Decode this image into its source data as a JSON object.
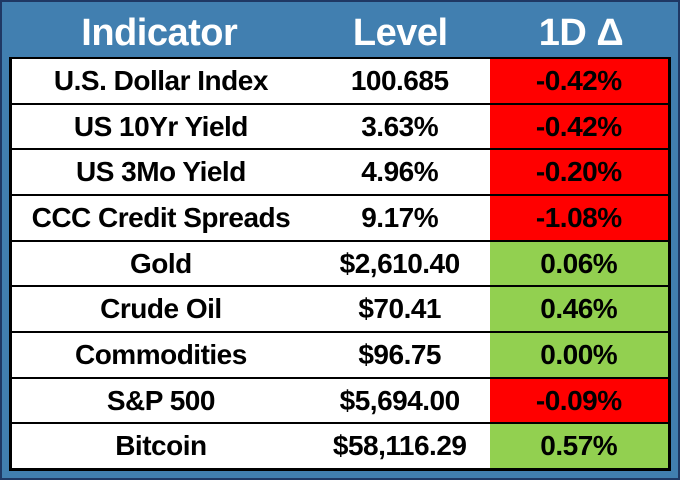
{
  "chart_data": {
    "type": "table",
    "columns": [
      "Indicator",
      "Level",
      "1D Δ"
    ],
    "rows": [
      [
        "U.S. Dollar Index",
        "100.685",
        "-0.42%"
      ],
      [
        "US 10Yr Yield",
        "3.63%",
        "-0.42%"
      ],
      [
        "US 3Mo Yield",
        "4.96%",
        "-0.20%"
      ],
      [
        "CCC Credit Spreads",
        "9.17%",
        "-1.08%"
      ],
      [
        "Gold",
        "$2,610.40",
        "0.06%"
      ],
      [
        "Crude Oil",
        "$70.41",
        "0.46%"
      ],
      [
        "Commodities",
        "$96.75",
        "0.00%"
      ],
      [
        "S&P 500",
        "$5,694.00",
        "-0.09%"
      ],
      [
        "Bitcoin",
        "$58,116.29",
        "0.57%"
      ]
    ],
    "layout": {
      "header_position": "top",
      "grid": "on",
      "delta_color_coding": "red for negative, green for zero or positive"
    }
  },
  "table": {
    "headers": [
      "Indicator",
      "Level",
      "1D Δ"
    ],
    "rows": [
      {
        "indicator": "U.S. Dollar Index",
        "level": "100.685",
        "delta": "-0.42%",
        "direction": "down"
      },
      {
        "indicator": "US 10Yr Yield",
        "level": "3.63%",
        "delta": "-0.42%",
        "direction": "down"
      },
      {
        "indicator": "US 3Mo Yield",
        "level": "4.96%",
        "delta": "-0.20%",
        "direction": "down"
      },
      {
        "indicator": "CCC Credit Spreads",
        "level": "9.17%",
        "delta": "-1.08%",
        "direction": "down"
      },
      {
        "indicator": "Gold",
        "level": "$2,610.40",
        "delta": "0.06%",
        "direction": "up"
      },
      {
        "indicator": "Crude Oil",
        "level": "$70.41",
        "delta": "0.46%",
        "direction": "up"
      },
      {
        "indicator": "Commodities",
        "level": "$96.75",
        "delta": "0.00%",
        "direction": "up"
      },
      {
        "indicator": "S&P 500",
        "level": "$5,694.00",
        "delta": "-0.09%",
        "direction": "down"
      },
      {
        "indicator": "Bitcoin",
        "level": "$58,116.29",
        "delta": "0.57%",
        "direction": "up"
      }
    ],
    "colors": {
      "header_bg": "#417FB0",
      "frame_bg": "#417FB0",
      "outer_border": "#1F3864",
      "negative_bg": "#FF0000",
      "positive_bg": "#92D050",
      "header_text": "#FFFFFF",
      "body_text": "#000000"
    }
  }
}
